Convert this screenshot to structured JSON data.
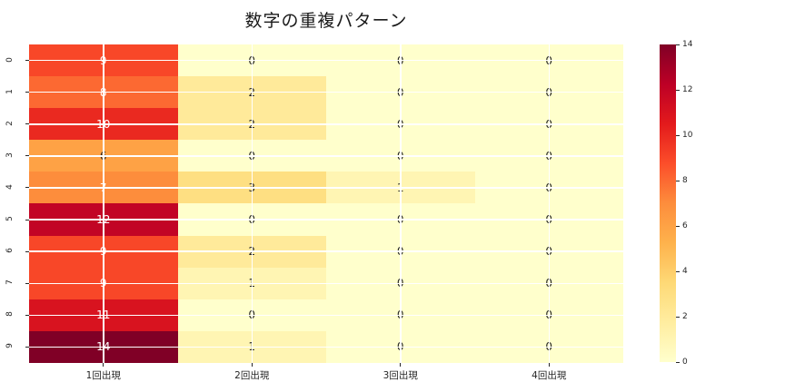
{
  "title": "数字の重複パターン",
  "chart_data": {
    "type": "heatmap",
    "title": "数字の重複パターン",
    "x_labels": [
      "1回出現",
      "2回出現",
      "3回出現",
      "4回出現"
    ],
    "y_labels": [
      "0",
      "1",
      "2",
      "3",
      "4",
      "5",
      "6",
      "7",
      "8",
      "9"
    ],
    "matrix": [
      [
        9,
        0,
        0,
        0
      ],
      [
        8,
        2,
        0,
        0
      ],
      [
        10,
        2,
        0,
        0
      ],
      [
        6,
        0,
        0,
        0
      ],
      [
        7,
        3,
        1,
        0
      ],
      [
        12,
        0,
        0,
        0
      ],
      [
        9,
        2,
        0,
        0
      ],
      [
        9,
        1,
        0,
        0
      ],
      [
        11,
        0,
        0,
        0
      ],
      [
        14,
        1,
        0,
        0
      ]
    ],
    "annotated": true,
    "vmin": 0,
    "vmax": 14,
    "colorbar_ticks": [
      0,
      2,
      4,
      6,
      8,
      10,
      12,
      14
    ],
    "colormap": {
      "name": "YlOrRd",
      "stops": [
        "#ffffcc",
        "#ffeda0",
        "#fed976",
        "#feb24c",
        "#fd8d3c",
        "#fc4e2a",
        "#e31a1c",
        "#bd0026",
        "#800026"
      ]
    },
    "grid_color": "#ffffff",
    "annotation_text_dark": "#262626",
    "annotation_text_light": "#ffffff",
    "axis_text_color": "#262626",
    "background_color": "#ffffff",
    "legend_position": "right-colorbar",
    "grid_on": true
  }
}
